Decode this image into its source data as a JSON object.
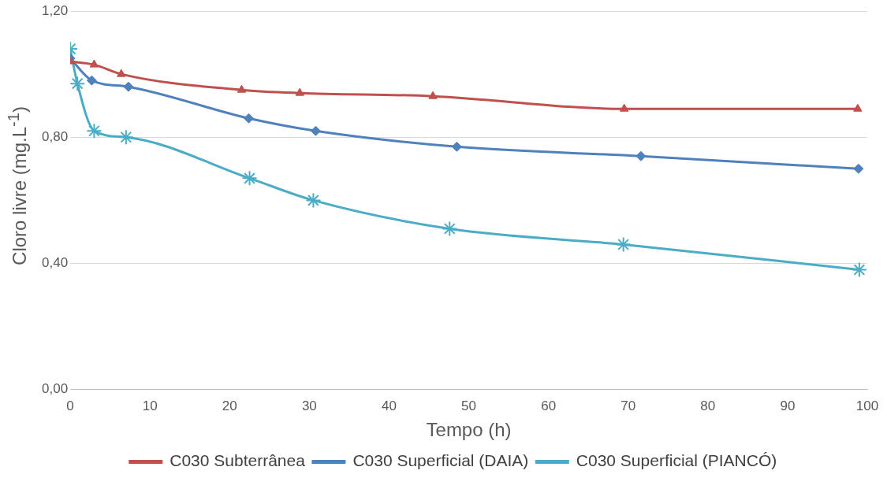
{
  "chart_data": {
    "type": "line",
    "xlabel": "Tempo (h)",
    "ylabel": "Cloro livre (mg.L$^{-1}$)",
    "xlim": [
      0,
      100
    ],
    "xticks": [
      0,
      10,
      20,
      30,
      40,
      50,
      60,
      70,
      80,
      90,
      100
    ],
    "ylim": [
      0,
      1.2
    ],
    "yticks": [
      {
        "value": 0,
        "label": "0,00"
      },
      {
        "value": 0.4,
        "label": "0,40"
      },
      {
        "value": 0.8,
        "label": "0,80"
      },
      {
        "value": 1.2,
        "label": "1,20"
      }
    ],
    "grid": "y",
    "legend": "bottom",
    "series": [
      {
        "name": "C030 Subterrânea",
        "color": "#c0504d",
        "marker": "triangle",
        "x": [
          0,
          3.0,
          6.4,
          21.5,
          28.8,
          45.5,
          69.5,
          98.8
        ],
        "values": [
          1.04,
          1.03,
          1.0,
          0.95,
          0.94,
          0.93,
          0.89,
          0.89
        ]
      },
      {
        "name": "C030 Superficial (DAIA)",
        "color": "#4f81bd",
        "marker": "diamond",
        "x": [
          0,
          2.7,
          7.3,
          22.4,
          30.8,
          48.5,
          71.6,
          98.9
        ],
        "values": [
          1.05,
          0.98,
          0.96,
          0.86,
          0.82,
          0.77,
          0.74,
          0.7
        ]
      },
      {
        "name": "C030 Superficial (PIANCÓ)",
        "color": "#4bacc6",
        "marker": "cross",
        "x": [
          0,
          0.9,
          3.0,
          7.0,
          22.5,
          30.5,
          47.6,
          69.4,
          99.0
        ],
        "values": [
          1.08,
          0.97,
          0.82,
          0.8,
          0.67,
          0.6,
          0.51,
          0.46,
          0.38
        ]
      }
    ]
  }
}
